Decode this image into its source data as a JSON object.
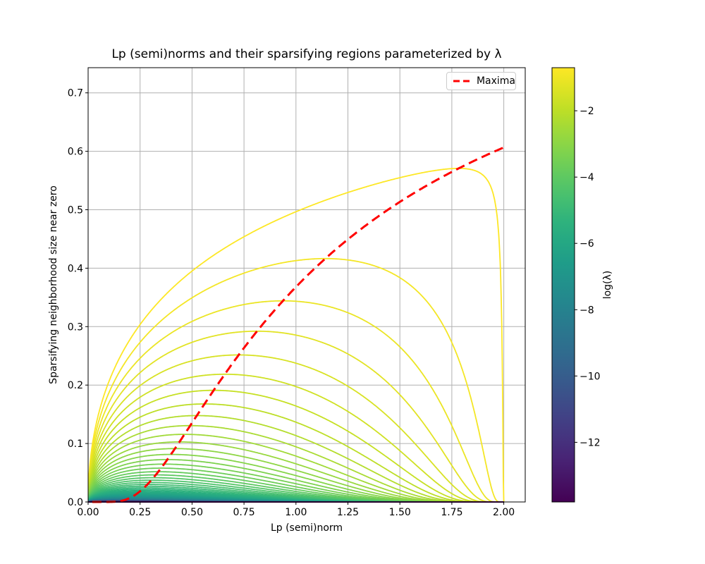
{
  "chart_data": {
    "type": "line",
    "title": "Lp (semi)norms and their sparsifying regions parameterized by λ",
    "xlabel": "Lp (semi)norm",
    "ylabel": "Sparsifying neighborhood size near zero",
    "xlim": [
      0,
      2.103
    ],
    "ylim": [
      0,
      0.743
    ],
    "grid": true,
    "grid_color": "#b0b0b0",
    "background_color": "#ffffff",
    "x_tick_values": [
      0,
      0.25,
      0.5,
      0.75,
      1.0,
      1.25,
      1.5,
      1.75,
      2.0
    ],
    "x_tick_labels": [
      "0.00",
      "0.25",
      "0.50",
      "0.75",
      "1.00",
      "1.25",
      "1.50",
      "1.75",
      "2.00"
    ],
    "y_tick_values": [
      0,
      0.1,
      0.2,
      0.3,
      0.4,
      0.5,
      0.6,
      0.7
    ],
    "y_tick_labels": [
      "0.0",
      "0.1",
      "0.2",
      "0.3",
      "0.4",
      "0.5",
      "0.6",
      "0.7"
    ],
    "curve_family": {
      "description": "Sparsifying neighborhood size near zero of the Lp (semi)norm penalty for each regularization weight λ, plotted versus p in (0,2]",
      "formula": "y(p) = (λ·p)^(1/(2−p))",
      "x_variable": "p",
      "x_start": 0.0,
      "x_end": 2.0,
      "log_lambda_start": -0.7,
      "log_lambda_end": -13.8,
      "num_curves": 72,
      "colormap": "viridis",
      "linewidth": 1.8
    },
    "maxima": {
      "label": "Maxima",
      "formula": "y(p) = exp(−1/p)",
      "color": "#ff0000",
      "linestyle": "dashed",
      "linewidth": 3,
      "p_start": 0.02,
      "p_end": 2.0,
      "end_value": 0.6065
    },
    "legend": {
      "location": "upper right",
      "entries": [
        "Maxima"
      ]
    },
    "colorbar": {
      "label": "log(λ)",
      "colormap": "viridis",
      "vmin": -13.8,
      "vmax": -0.7,
      "tick_values": [
        -2,
        -4,
        -6,
        -8,
        -10,
        -12
      ],
      "tick_labels": [
        "−2",
        "−4",
        "−6",
        "−8",
        "−10",
        "−12"
      ]
    }
  }
}
